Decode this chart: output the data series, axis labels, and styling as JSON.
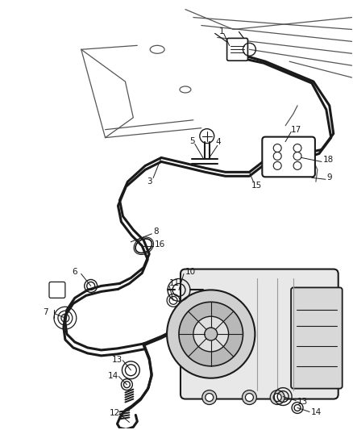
{
  "bg_color": "#ffffff",
  "line_color": "#1a1a1a",
  "figsize": [
    4.38,
    5.33
  ],
  "dpi": 100,
  "structural_color": "#555555",
  "pipe_lw": 2.2,
  "thin_lw": 0.9,
  "label_fs": 7.5
}
